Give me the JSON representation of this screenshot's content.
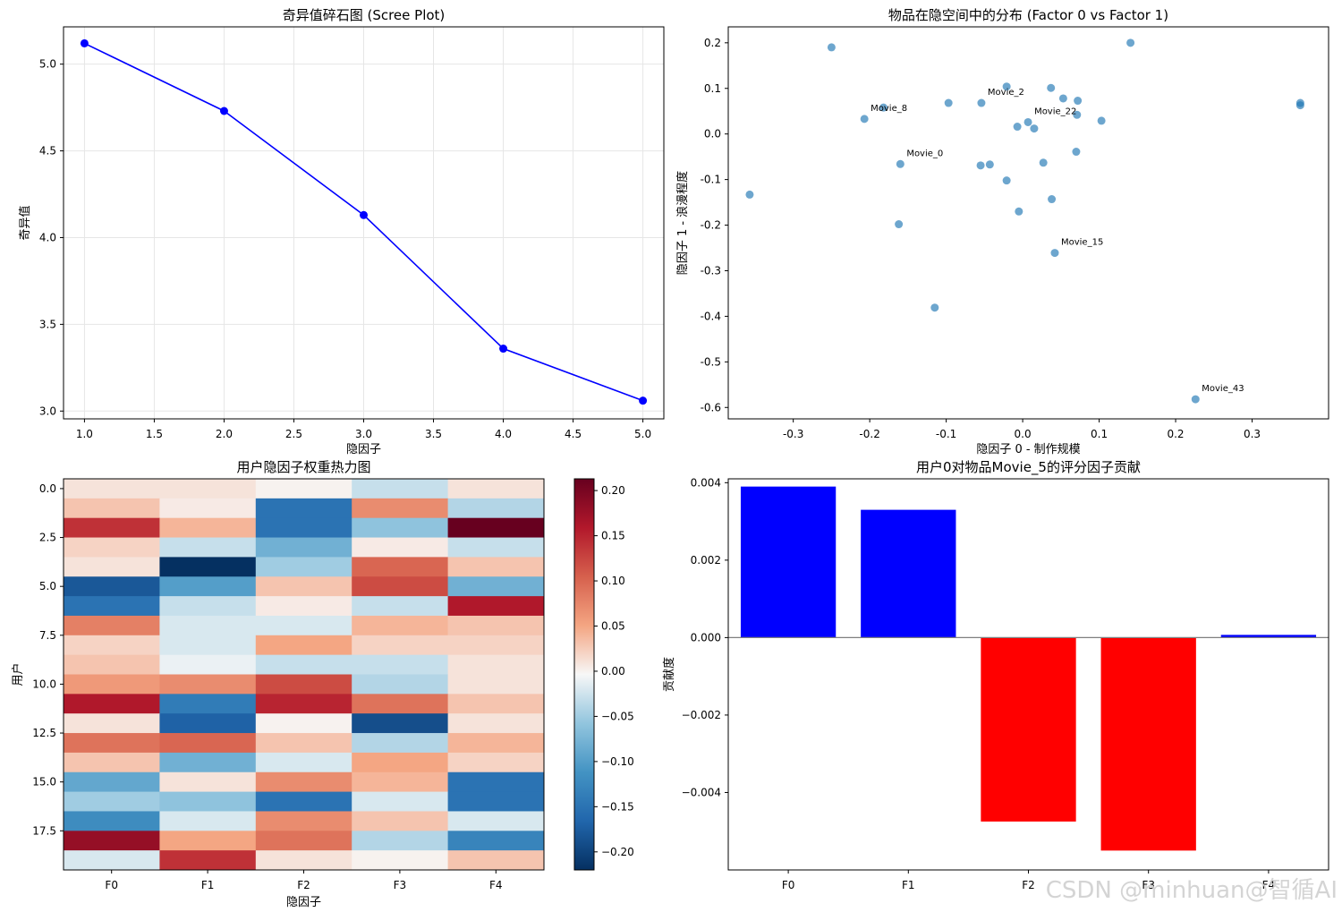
{
  "watermark": "CSDN @minhuan@智循AI",
  "chart_data": [
    {
      "type": "line",
      "title": "奇异值碎石图 (Scree Plot)",
      "xlabel": "隐因子",
      "ylabel": "奇异值",
      "x": [
        1,
        2,
        3,
        4,
        5
      ],
      "y": [
        5.12,
        4.73,
        4.13,
        3.36,
        3.06
      ],
      "xlim": [
        0.85,
        5.15
      ],
      "ylim": [
        2.955,
        5.215
      ],
      "xticks": [
        "1.0",
        "1.5",
        "2.0",
        "2.5",
        "3.0",
        "3.5",
        "4.0",
        "4.5",
        "5.0"
      ],
      "yticks": [
        "3.0",
        "3.5",
        "4.0",
        "4.5",
        "5.0"
      ],
      "grid": true,
      "color": "#0000ff"
    },
    {
      "type": "scatter",
      "title": "物品在隐空间中的分布 (Factor 0 vs Factor 1)",
      "xlabel": "隐因子 0 - 制作规模",
      "ylabel": "隐因子 1 - 浪漫程度",
      "xlim": [
        -0.385,
        0.4
      ],
      "ylim": [
        -0.625,
        0.235
      ],
      "xticks": [
        "-0.3",
        "-0.2",
        "-0.1",
        "0.0",
        "0.1",
        "0.2",
        "0.3"
      ],
      "yticks": [
        "0.2",
        "0.1",
        "0.0",
        "-0.1",
        "-0.2",
        "-0.3",
        "-0.4",
        "-0.5",
        "-0.6"
      ],
      "color": "#1f77b4",
      "points": [
        [
          -0.357,
          -0.133
        ],
        [
          -0.25,
          0.19
        ],
        [
          -0.207,
          0.033
        ],
        [
          -0.182,
          0.058
        ],
        [
          -0.16,
          -0.066
        ],
        [
          -0.162,
          -0.198
        ],
        [
          -0.115,
          -0.381
        ],
        [
          -0.097,
          0.068
        ],
        [
          -0.054,
          0.068
        ],
        [
          -0.055,
          -0.069
        ],
        [
          -0.043,
          -0.067
        ],
        [
          -0.021,
          0.104
        ],
        [
          -0.021,
          -0.102
        ],
        [
          -0.007,
          0.016
        ],
        [
          -0.005,
          -0.17
        ],
        [
          0.007,
          0.026
        ],
        [
          0.015,
          0.012
        ],
        [
          0.027,
          -0.063
        ],
        [
          0.037,
          0.101
        ],
        [
          0.038,
          -0.143
        ],
        [
          0.042,
          -0.261
        ],
        [
          0.053,
          0.078
        ],
        [
          0.07,
          -0.039
        ],
        [
          0.071,
          0.042
        ],
        [
          0.072,
          0.073
        ],
        [
          0.103,
          0.029
        ],
        [
          0.141,
          0.2
        ],
        [
          0.226,
          -0.582
        ],
        [
          0.363,
          0.063
        ],
        [
          0.363,
          0.068
        ]
      ],
      "annotations": [
        {
          "label": "Movie_8",
          "x": -0.207,
          "y": 0.033
        },
        {
          "label": "Movie_0",
          "x": -0.16,
          "y": -0.066
        },
        {
          "label": "Movie_2",
          "x": -0.054,
          "y": 0.068
        },
        {
          "label": "Movie_22",
          "x": 0.007,
          "y": 0.026
        },
        {
          "label": "Movie_15",
          "x": 0.042,
          "y": -0.261
        },
        {
          "label": "Movie_43",
          "x": 0.226,
          "y": -0.582
        }
      ]
    },
    {
      "type": "heatmap",
      "title": "用户隐因子权重热力图",
      "xlabel": "隐因子",
      "ylabel": "用户",
      "columns": [
        "F0",
        "F1",
        "F2",
        "F3",
        "F4"
      ],
      "yticks": [
        "0.0",
        "2.5",
        "5.0",
        "7.5",
        "10.0",
        "12.5",
        "15.0",
        "17.5"
      ],
      "colorbar_ticks": [
        "0.20",
        "0.15",
        "0.10",
        "0.05",
        "0.00",
        "−0.05",
        "−0.10",
        "−0.15",
        "−0.20"
      ],
      "vmin": -0.22,
      "vmax": 0.213,
      "colormap": "RdBu_r",
      "values": [
        [
          0.01,
          0.01,
          0.0,
          -0.03,
          0.01
        ],
        [
          0.03,
          0.005,
          -0.15,
          0.07,
          -0.04
        ],
        [
          0.14,
          0.04,
          -0.15,
          -0.06,
          0.213
        ],
        [
          0.02,
          -0.03,
          -0.08,
          0.005,
          -0.03
        ],
        [
          0.01,
          -0.22,
          -0.05,
          0.1,
          0.03
        ],
        [
          -0.18,
          -0.1,
          0.03,
          0.12,
          -0.08
        ],
        [
          -0.15,
          -0.03,
          0.005,
          -0.03,
          0.16
        ],
        [
          0.08,
          -0.02,
          -0.02,
          0.04,
          0.03
        ],
        [
          0.02,
          -0.02,
          0.05,
          0.02,
          0.02
        ],
        [
          0.03,
          -0.01,
          -0.03,
          -0.03,
          0.01
        ],
        [
          0.06,
          0.07,
          0.12,
          -0.04,
          0.01
        ],
        [
          0.16,
          -0.14,
          0.15,
          0.09,
          0.03
        ],
        [
          0.01,
          -0.17,
          0.0,
          -0.19,
          0.01
        ],
        [
          0.09,
          0.1,
          0.03,
          -0.04,
          0.04
        ],
        [
          0.03,
          -0.08,
          -0.02,
          0.05,
          0.02
        ],
        [
          -0.09,
          0.01,
          0.07,
          0.04,
          -0.15
        ],
        [
          -0.05,
          -0.06,
          -0.15,
          -0.02,
          -0.15
        ],
        [
          -0.12,
          -0.02,
          0.07,
          0.03,
          -0.02
        ],
        [
          0.18,
          0.05,
          0.09,
          -0.04,
          -0.13
        ],
        [
          -0.02,
          0.14,
          0.01,
          0.0,
          0.03
        ]
      ]
    },
    {
      "type": "bar",
      "title": "用户0对物品Movie_5的评分因子贡献",
      "xlabel": "",
      "ylabel": "贡献度",
      "categories": [
        "F0",
        "F1",
        "F2",
        "F3",
        "F4"
      ],
      "values": [
        0.0039,
        0.0033,
        -0.00475,
        -0.0055,
        7e-05
      ],
      "ylim": [
        -0.006,
        0.0041
      ],
      "yticks": [
        "0.004",
        "0.002",
        "0.000",
        "−0.002",
        "−0.004"
      ],
      "positive_color": "#0000ff",
      "negative_color": "#ff0000"
    }
  ]
}
